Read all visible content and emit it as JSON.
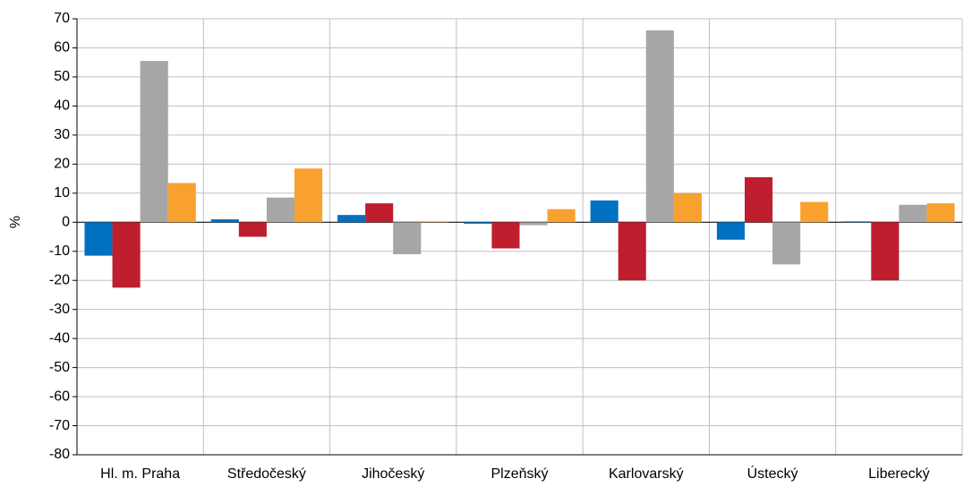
{
  "chart_data": {
    "type": "bar",
    "y_label": "%",
    "categories": [
      "Hl. m. Praha",
      "Středočeský",
      "Jihočeský",
      "Plzeňský",
      "Karlovarský",
      "Ústecký",
      "Liberecký"
    ],
    "series": [
      {
        "color": "#0070c0",
        "values": [
          -11.5,
          1,
          2.5,
          -0.5,
          7.5,
          -6,
          0.3
        ]
      },
      {
        "color": "#be1e2d",
        "values": [
          -22.5,
          -5,
          6.5,
          -9,
          -20,
          15.5,
          -20
        ]
      },
      {
        "color": "#a6a6a6",
        "values": [
          55.5,
          8.5,
          -11,
          -1,
          66,
          -14.5,
          6
        ]
      },
      {
        "color": "#f8a12e",
        "values": [
          13.5,
          18.5,
          0.3,
          4.5,
          10,
          7,
          6.5
        ]
      }
    ],
    "ylim": [
      -80,
      70
    ],
    "yticks": [
      -80,
      -70,
      -60,
      -50,
      -40,
      -30,
      -20,
      -10,
      0,
      10,
      20,
      30,
      40,
      50,
      60,
      70
    ],
    "grid": true
  }
}
